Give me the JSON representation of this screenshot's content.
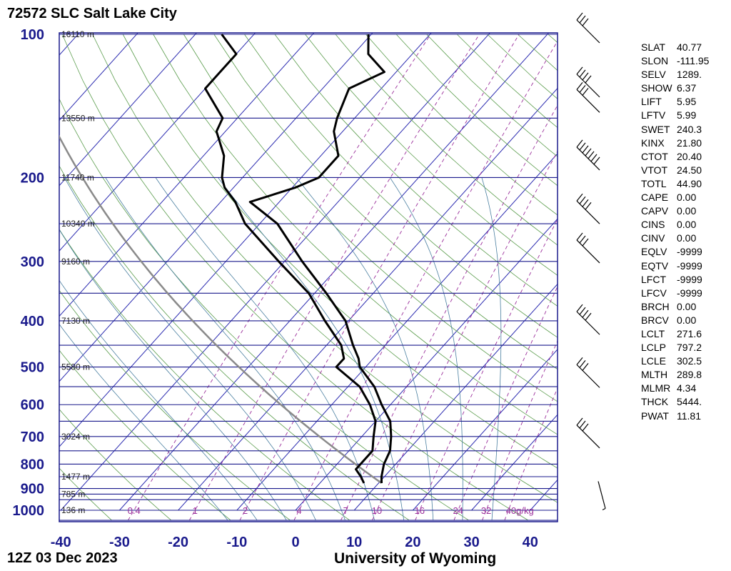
{
  "header": {
    "title": "72572 SLC Salt Lake City"
  },
  "footer": {
    "datetime": "12Z 03 Dec 2023",
    "source": "University of Wyoming"
  },
  "colors": {
    "isobar": "#1a1a8c",
    "isotherm": "#2b2bb0",
    "dry_adiabat": "#5a9c4c",
    "moist_adiabat": "#4a7fa0",
    "mixing_ratio": "#9b2f9b",
    "sounding": "#000000",
    "parcel": "#8a8a8a",
    "axis_text": "#1a1a8c"
  },
  "chart_data": {
    "type": "skew-t",
    "title": "72572 SLC Salt Lake City",
    "xlabel": "",
    "ylabel": "",
    "x_range": [
      -40,
      45
    ],
    "x_ticks": [
      -40,
      -30,
      -20,
      -10,
      0,
      10,
      20,
      30,
      40
    ],
    "x_tick_labels": [
      "-40",
      "-30",
      "-20",
      "-10",
      "0",
      "10",
      "20",
      "30",
      "40"
    ],
    "pressure_ticks": [
      100,
      200,
      300,
      400,
      500,
      600,
      700,
      800,
      900,
      1000
    ],
    "pressure_tick_labels": [
      "100",
      "200",
      "300",
      "400",
      "500",
      "600",
      "700",
      "800",
      "900",
      "1000"
    ],
    "isobars": [
      100,
      150,
      200,
      250,
      300,
      350,
      400,
      450,
      500,
      550,
      600,
      650,
      700,
      750,
      800,
      850,
      900,
      925,
      950,
      1000,
      1050
    ],
    "height_labels": [
      {
        "p": 100,
        "label": "16110 m"
      },
      {
        "p": 150,
        "label": "13550 m"
      },
      {
        "p": 200,
        "label": "11740 m"
      },
      {
        "p": 250,
        "label": "10340 m"
      },
      {
        "p": 300,
        "label": "9160 m"
      },
      {
        "p": 400,
        "label": "7130 m"
      },
      {
        "p": 500,
        "label": "5580 m"
      },
      {
        "p": 700,
        "label": "3024 m"
      },
      {
        "p": 850,
        "label": "1477 m"
      },
      {
        "p": 925,
        "label": "785 m"
      },
      {
        "p": 1000,
        "label": "136 m"
      }
    ],
    "mixing_ratio_labels": [
      "0.4",
      "1",
      "2",
      "4",
      "7",
      "10",
      "16",
      "24",
      "32",
      "40g/kg"
    ],
    "temperature": [
      {
        "p": 877,
        "t": 10.5
      },
      {
        "p": 850,
        "t": 9.5
      },
      {
        "p": 800,
        "t": 8.0
      },
      {
        "p": 750,
        "t": 7.0
      },
      {
        "p": 700,
        "t": 5.0
      },
      {
        "p": 650,
        "t": 2.5
      },
      {
        "p": 600,
        "t": -1.5
      },
      {
        "p": 550,
        "t": -5.5
      },
      {
        "p": 500,
        "t": -11.0
      },
      {
        "p": 480,
        "t": -12.5
      },
      {
        "p": 450,
        "t": -15.5
      },
      {
        "p": 400,
        "t": -20.5
      },
      {
        "p": 350,
        "t": -28.0
      },
      {
        "p": 300,
        "t": -37.0
      },
      {
        "p": 250,
        "t": -47.0
      },
      {
        "p": 225,
        "t": -55.0
      },
      {
        "p": 210,
        "t": -49.5
      },
      {
        "p": 200,
        "t": -47.0
      },
      {
        "p": 180,
        "t": -47.0
      },
      {
        "p": 160,
        "t": -51.5
      },
      {
        "p": 150,
        "t": -53.0
      },
      {
        "p": 130,
        "t": -55.5
      },
      {
        "p": 120,
        "t": -52.0
      },
      {
        "p": 110,
        "t": -57.5
      },
      {
        "p": 100,
        "t": -60.5
      }
    ],
    "dewpoint": [
      {
        "p": 877,
        "t": 7.5
      },
      {
        "p": 850,
        "t": 6.0
      },
      {
        "p": 820,
        "t": 4.0
      },
      {
        "p": 800,
        "t": 4.0
      },
      {
        "p": 750,
        "t": 4.0
      },
      {
        "p": 700,
        "t": 2.0
      },
      {
        "p": 650,
        "t": 0.0
      },
      {
        "p": 600,
        "t": -3.5
      },
      {
        "p": 550,
        "t": -8.0
      },
      {
        "p": 500,
        "t": -15.0
      },
      {
        "p": 480,
        "t": -15.0
      },
      {
        "p": 450,
        "t": -17.5
      },
      {
        "p": 400,
        "t": -24.0
      },
      {
        "p": 350,
        "t": -31.0
      },
      {
        "p": 300,
        "t": -41.0
      },
      {
        "p": 250,
        "t": -52.5
      },
      {
        "p": 225,
        "t": -57.5
      },
      {
        "p": 210,
        "t": -61.5
      },
      {
        "p": 200,
        "t": -63.5
      },
      {
        "p": 180,
        "t": -66.5
      },
      {
        "p": 160,
        "t": -71.5
      },
      {
        "p": 150,
        "t": -72.5
      },
      {
        "p": 130,
        "t": -80.0
      },
      {
        "p": 120,
        "t": -80.0
      },
      {
        "p": 110,
        "t": -80.0
      },
      {
        "p": 100,
        "t": -85.5
      }
    ],
    "wind_barbs": [
      {
        "p": 100,
        "speed": 30
      },
      {
        "p": 130,
        "speed": 40
      },
      {
        "p": 140,
        "speed": 30
      },
      {
        "p": 185,
        "speed": 70
      },
      {
        "p": 240,
        "speed": 35
      },
      {
        "p": 290,
        "speed": 25
      },
      {
        "p": 410,
        "speed": 40
      },
      {
        "p": 530,
        "speed": 30
      },
      {
        "p": 710,
        "speed": 25
      },
      {
        "p": 900,
        "speed": 5
      }
    ]
  },
  "indices": [
    {
      "key": "SLAT",
      "value": "40.77"
    },
    {
      "key": "SLON",
      "value": "-111.95"
    },
    {
      "key": "SELV",
      "value": "1289."
    },
    {
      "key": "SHOW",
      "value": "6.37"
    },
    {
      "key": "LIFT",
      "value": "5.95"
    },
    {
      "key": "LFTV",
      "value": "5.99"
    },
    {
      "key": "SWET",
      "value": "240.3"
    },
    {
      "key": "KINX",
      "value": "21.80"
    },
    {
      "key": "CTOT",
      "value": "20.40"
    },
    {
      "key": "VTOT",
      "value": "24.50"
    },
    {
      "key": "TOTL",
      "value": "44.90"
    },
    {
      "key": "CAPE",
      "value": "0.00"
    },
    {
      "key": "CAPV",
      "value": "0.00"
    },
    {
      "key": "CINS",
      "value": "0.00"
    },
    {
      "key": "CINV",
      "value": "0.00"
    },
    {
      "key": "EQLV",
      "value": "-9999"
    },
    {
      "key": "EQTV",
      "value": "-9999"
    },
    {
      "key": "LFCT",
      "value": "-9999"
    },
    {
      "key": "LFCV",
      "value": "-9999"
    },
    {
      "key": "BRCH",
      "value": "0.00"
    },
    {
      "key": "BRCV",
      "value": "0.00"
    },
    {
      "key": "LCLT",
      "value": "271.6"
    },
    {
      "key": "LCLP",
      "value": "797.2"
    },
    {
      "key": "LCLE",
      "value": "302.5"
    },
    {
      "key": "MLTH",
      "value": "289.8"
    },
    {
      "key": "MLMR",
      "value": "4.34"
    },
    {
      "key": "THCK",
      "value": "5444."
    },
    {
      "key": "PWAT",
      "value": "11.81"
    }
  ]
}
